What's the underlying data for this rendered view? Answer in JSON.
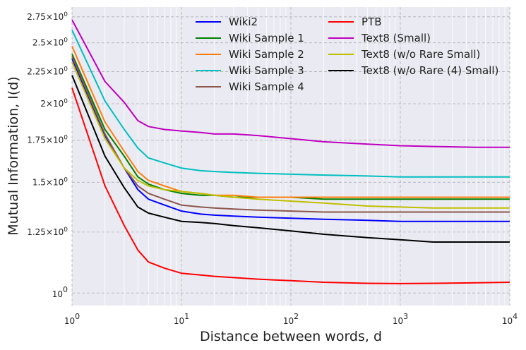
{
  "chart_data": {
    "type": "line",
    "xlabel": "Distance between words, d",
    "ylabel": "Mutual Information, I(d)",
    "xscale": "log",
    "yscale": "log",
    "xlim": [
      1,
      10000
    ],
    "ylim": [
      0.955,
      2.85
    ],
    "grid": true,
    "legend_position": "top-right",
    "legend_columns": 2,
    "x_ticks": [
      {
        "value": 1,
        "base": "10",
        "exp": "0"
      },
      {
        "value": 10,
        "base": "10",
        "exp": "1"
      },
      {
        "value": 100,
        "base": "10",
        "exp": "2"
      },
      {
        "value": 1000,
        "base": "10",
        "exp": "3"
      },
      {
        "value": 10000,
        "base": "10",
        "exp": "4"
      }
    ],
    "y_ticks": [
      {
        "value": 1.0,
        "label": "10",
        "exp": "0",
        "size": "large"
      },
      {
        "value": 1.25,
        "label": "1.25×10",
        "exp": "0",
        "size": "small"
      },
      {
        "value": 1.5,
        "label": "1.5×10",
        "exp": "0",
        "size": "small"
      },
      {
        "value": 1.75,
        "label": "1.75×10",
        "exp": "0",
        "size": "small"
      },
      {
        "value": 2.0,
        "label": "2×10",
        "exp": "0",
        "size": "small"
      },
      {
        "value": 2.25,
        "label": "2.25×10",
        "exp": "0",
        "size": "small"
      },
      {
        "value": 2.5,
        "label": "2.5×10",
        "exp": "0",
        "size": "small"
      },
      {
        "value": 2.75,
        "label": "2.75×10",
        "exp": "0",
        "size": "small"
      }
    ],
    "x": [
      1,
      2,
      3,
      4,
      5,
      7,
      10,
      15,
      20,
      30,
      50,
      100,
      200,
      500,
      1000,
      2000,
      5000,
      10000
    ],
    "series": [
      {
        "name": "Wiki2",
        "color": "#0000ff",
        "values": [
          2.36,
          1.78,
          1.58,
          1.46,
          1.41,
          1.38,
          1.35,
          1.335,
          1.33,
          1.325,
          1.32,
          1.315,
          1.31,
          1.305,
          1.3,
          1.3,
          1.3,
          1.3
        ]
      },
      {
        "name": "Wiki Sample 1",
        "color": "#008000",
        "values": [
          2.4,
          1.82,
          1.65,
          1.53,
          1.49,
          1.46,
          1.44,
          1.43,
          1.43,
          1.42,
          1.42,
          1.42,
          1.41,
          1.41,
          1.41,
          1.41,
          1.41,
          1.41
        ]
      },
      {
        "name": "Wiki Sample 2",
        "color": "#ff7f0e",
        "values": [
          2.47,
          1.87,
          1.68,
          1.56,
          1.51,
          1.48,
          1.45,
          1.44,
          1.43,
          1.43,
          1.42,
          1.42,
          1.42,
          1.42,
          1.42,
          1.42,
          1.42,
          1.42
        ]
      },
      {
        "name": "Wiki Sample 3",
        "color": "#00bfbf",
        "values": [
          2.62,
          2.02,
          1.82,
          1.7,
          1.64,
          1.61,
          1.58,
          1.565,
          1.56,
          1.555,
          1.55,
          1.545,
          1.54,
          1.535,
          1.53,
          1.53,
          1.53,
          1.53
        ]
      },
      {
        "name": "Wiki Sample 4",
        "color": "#8c564b",
        "values": [
          2.38,
          1.79,
          1.58,
          1.48,
          1.44,
          1.41,
          1.38,
          1.37,
          1.365,
          1.36,
          1.355,
          1.35,
          1.345,
          1.345,
          1.345,
          1.345,
          1.345,
          1.345
        ]
      },
      {
        "name": "PTB",
        "color": "#ff0000",
        "values": [
          2.12,
          1.48,
          1.28,
          1.17,
          1.12,
          1.095,
          1.075,
          1.068,
          1.063,
          1.058,
          1.052,
          1.046,
          1.04,
          1.036,
          1.035,
          1.036,
          1.038,
          1.04
        ]
      },
      {
        "name": "Text8 (Small)",
        "color": "#bf00bf",
        "values": [
          2.72,
          2.17,
          2.01,
          1.88,
          1.84,
          1.82,
          1.81,
          1.8,
          1.79,
          1.79,
          1.78,
          1.76,
          1.74,
          1.725,
          1.715,
          1.71,
          1.705,
          1.705
        ]
      },
      {
        "name": "Text8 (w/o Rare Small)",
        "color": "#bfbf00",
        "values": [
          2.33,
          1.76,
          1.58,
          1.51,
          1.48,
          1.46,
          1.45,
          1.44,
          1.43,
          1.42,
          1.41,
          1.4,
          1.39,
          1.375,
          1.37,
          1.365,
          1.365,
          1.365
        ]
      },
      {
        "name": "Text8 (w/o Rare (4) Small)",
        "color": "#000000",
        "values": [
          2.22,
          1.65,
          1.47,
          1.37,
          1.34,
          1.32,
          1.3,
          1.295,
          1.29,
          1.28,
          1.27,
          1.255,
          1.24,
          1.225,
          1.215,
          1.205,
          1.205,
          1.205
        ]
      }
    ]
  }
}
